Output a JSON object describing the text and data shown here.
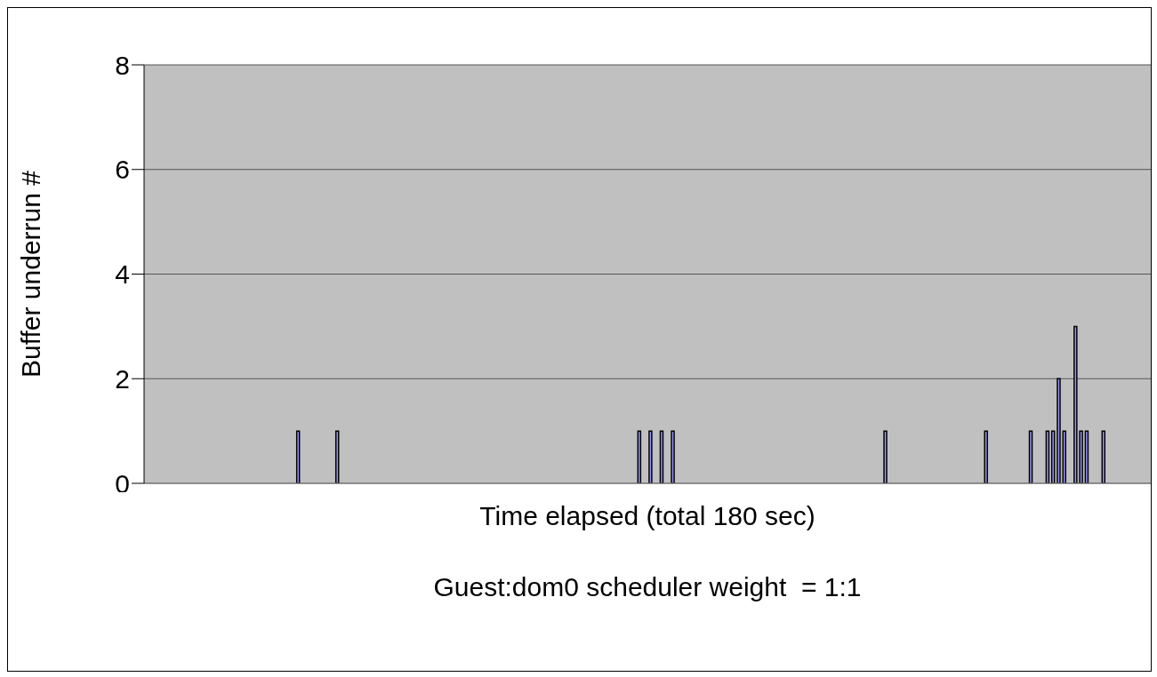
{
  "chart_data": {
    "type": "bar",
    "xlabel": "Time elapsed (total 180 sec)",
    "ylabel": "Buffer underrun #",
    "annotations": [
      "Guest:dom0 scheduler weight  = 1:1"
    ],
    "categories": [
      null,
      null,
      null,
      null,
      null,
      null,
      null,
      null,
      null,
      null,
      null,
      null,
      null,
      null,
      null,
      null,
      null,
      null,
      null,
      null,
      null,
      null,
      null,
      null,
      null,
      null,
      null,
      null,
      null,
      null,
      null,
      null,
      null,
      null,
      null,
      null,
      null,
      null,
      null,
      null,
      null,
      null,
      null,
      null,
      null,
      null,
      null,
      null,
      null,
      null,
      null,
      null,
      null,
      null,
      null,
      null,
      null,
      null,
      null,
      null,
      null,
      null,
      null,
      null,
      null,
      null,
      null,
      null,
      null,
      null,
      null,
      null,
      null,
      null,
      null,
      null,
      null,
      null,
      null,
      null,
      null,
      null,
      null,
      null,
      null,
      null,
      null,
      null,
      null,
      null,
      null,
      null,
      null,
      null,
      null,
      null,
      null,
      null,
      null,
      null,
      null,
      null,
      null,
      null,
      null,
      null,
      null,
      null,
      null,
      null,
      null,
      null,
      null,
      null,
      null,
      null,
      null,
      null,
      null,
      null,
      null,
      null,
      null,
      null,
      null,
      null,
      null,
      null,
      null,
      null,
      null,
      null,
      null,
      null,
      null,
      null,
      null,
      null,
      null,
      null,
      null,
      null,
      null,
      null,
      null,
      null,
      null,
      null,
      null,
      null,
      null,
      null,
      null,
      null,
      null,
      null,
      null,
      null,
      null,
      null,
      null,
      null,
      null,
      null,
      null,
      null,
      null,
      null,
      null,
      null,
      null,
      null,
      null,
      null,
      null,
      null,
      null,
      null,
      null,
      null
    ],
    "values": [
      0,
      0,
      0,
      0,
      0,
      0,
      0,
      0,
      0,
      0,
      0,
      0,
      0,
      0,
      0,
      0,
      0,
      0,
      0,
      0,
      0,
      0,
      0,
      0,
      0,
      0,
      0,
      1,
      0,
      0,
      0,
      0,
      0,
      0,
      1,
      0,
      0,
      0,
      0,
      0,
      0,
      0,
      0,
      0,
      0,
      0,
      0,
      0,
      0,
      0,
      0,
      0,
      0,
      0,
      0,
      0,
      0,
      0,
      0,
      0,
      0,
      0,
      0,
      0,
      0,
      0,
      0,
      0,
      0,
      0,
      0,
      0,
      0,
      0,
      0,
      0,
      0,
      0,
      0,
      0,
      0,
      0,
      0,
      0,
      0,
      0,
      0,
      0,
      1,
      0,
      1,
      0,
      1,
      0,
      1,
      0,
      0,
      0,
      0,
      0,
      0,
      0,
      0,
      0,
      0,
      0,
      0,
      0,
      0,
      0,
      0,
      0,
      0,
      0,
      0,
      0,
      0,
      0,
      0,
      0,
      0,
      0,
      0,
      0,
      0,
      0,
      0,
      0,
      0,
      0,
      0,
      0,
      1,
      0,
      0,
      0,
      0,
      0,
      0,
      0,
      0,
      0,
      0,
      0,
      0,
      0,
      0,
      0,
      0,
      0,
      1,
      0,
      0,
      0,
      0,
      0,
      0,
      0,
      1,
      0,
      0,
      1,
      1,
      2,
      1,
      0,
      3,
      1,
      1,
      0,
      0,
      1,
      0,
      0,
      0,
      0,
      0,
      0,
      0,
      0
    ],
    "color": "#9999ff",
    "ylim": [
      0,
      8
    ],
    "yticks": [
      0,
      2,
      4,
      6,
      8
    ],
    "grid": "y",
    "tick_labels": "y"
  }
}
